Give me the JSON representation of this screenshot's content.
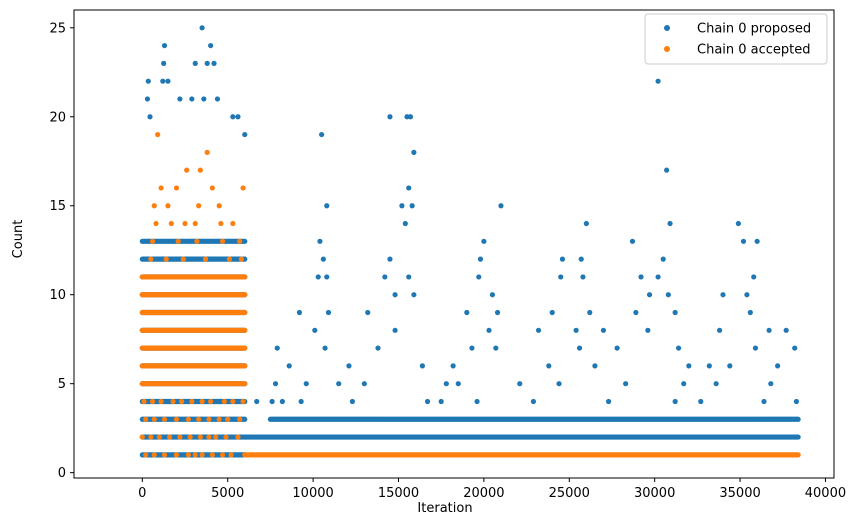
{
  "chart_data": {
    "type": "scatter",
    "title": "",
    "xlabel": "Iteration",
    "ylabel": "Count",
    "xlim": [
      -4000,
      40500
    ],
    "ylim": [
      -0.3,
      26
    ],
    "x_ticks": [
      0,
      5000,
      10000,
      15000,
      20000,
      25000,
      30000,
      35000,
      40000
    ],
    "y_ticks": [
      0,
      5,
      10,
      15,
      20,
      25
    ],
    "grid": false,
    "legend_placement": "top-right",
    "series": [
      {
        "name": "Chain 0 proposed",
        "color": "#1f77b4",
        "bands": [
          {
            "x_start": 0,
            "x_end": 6000,
            "y_min": 1,
            "y_max": 13,
            "density": "dense"
          },
          {
            "x_start": 6000,
            "x_end": 38400,
            "y_min": 2,
            "y_max": 2,
            "density": "dense"
          },
          {
            "x_start": 7500,
            "x_end": 38400,
            "y_min": 3,
            "y_max": 3,
            "density": "dense"
          }
        ],
        "points": [
          [
            3500,
            25
          ],
          [
            1300,
            24
          ],
          [
            4000,
            24
          ],
          [
            1250,
            23
          ],
          [
            3100,
            23
          ],
          [
            3800,
            23
          ],
          [
            4200,
            23
          ],
          [
            1200,
            22
          ],
          [
            1500,
            22
          ],
          [
            350,
            22
          ],
          [
            30200,
            22
          ],
          [
            2200,
            21
          ],
          [
            2900,
            21
          ],
          [
            300,
            21
          ],
          [
            3600,
            21
          ],
          [
            4400,
            21
          ],
          [
            450,
            20
          ],
          [
            5300,
            20
          ],
          [
            5600,
            20
          ],
          [
            14500,
            20
          ],
          [
            15500,
            20
          ],
          [
            15700,
            20
          ],
          [
            10500,
            19
          ],
          [
            6000,
            19
          ],
          [
            15900,
            18
          ],
          [
            30700,
            17
          ],
          [
            15600,
            16
          ],
          [
            10800,
            15
          ],
          [
            15200,
            15
          ],
          [
            15800,
            15
          ],
          [
            21000,
            15
          ],
          [
            26000,
            14
          ],
          [
            30900,
            14
          ],
          [
            34900,
            14
          ],
          [
            15400,
            14
          ],
          [
            10400,
            13
          ],
          [
            20000,
            13
          ],
          [
            28700,
            13
          ],
          [
            35200,
            13
          ],
          [
            36000,
            13
          ],
          [
            14500,
            12
          ],
          [
            19800,
            12
          ],
          [
            24600,
            12
          ],
          [
            25700,
            12
          ],
          [
            30500,
            12
          ],
          [
            10600,
            12
          ],
          [
            10300,
            11
          ],
          [
            10800,
            11
          ],
          [
            14200,
            11
          ],
          [
            15600,
            11
          ],
          [
            19700,
            11
          ],
          [
            24500,
            11
          ],
          [
            25800,
            11
          ],
          [
            29200,
            11
          ],
          [
            30200,
            11
          ],
          [
            35800,
            11
          ],
          [
            34000,
            10
          ],
          [
            35400,
            10
          ],
          [
            14800,
            10
          ],
          [
            15900,
            10
          ],
          [
            20500,
            10
          ],
          [
            29700,
            10
          ],
          [
            30800,
            10
          ],
          [
            9200,
            9
          ],
          [
            10900,
            9
          ],
          [
            13200,
            9
          ],
          [
            19000,
            9
          ],
          [
            20800,
            9
          ],
          [
            24000,
            9
          ],
          [
            26200,
            9
          ],
          [
            28900,
            9
          ],
          [
            31200,
            9
          ],
          [
            35600,
            9
          ],
          [
            10100,
            8
          ],
          [
            14800,
            8
          ],
          [
            20300,
            8
          ],
          [
            23200,
            8
          ],
          [
            25400,
            8
          ],
          [
            27000,
            8
          ],
          [
            29600,
            8
          ],
          [
            33800,
            8
          ],
          [
            36700,
            8
          ],
          [
            37700,
            8
          ],
          [
            7900,
            7
          ],
          [
            10700,
            7
          ],
          [
            13800,
            7
          ],
          [
            19300,
            7
          ],
          [
            20700,
            7
          ],
          [
            25600,
            7
          ],
          [
            27800,
            7
          ],
          [
            31400,
            7
          ],
          [
            35900,
            7
          ],
          [
            38200,
            7
          ],
          [
            8600,
            6
          ],
          [
            12100,
            6
          ],
          [
            16400,
            6
          ],
          [
            18200,
            6
          ],
          [
            23800,
            6
          ],
          [
            26500,
            6
          ],
          [
            32000,
            6
          ],
          [
            33200,
            6
          ],
          [
            34400,
            6
          ],
          [
            37200,
            6
          ],
          [
            7800,
            5
          ],
          [
            9600,
            5
          ],
          [
            11500,
            5
          ],
          [
            13000,
            5
          ],
          [
            17800,
            5
          ],
          [
            18500,
            5
          ],
          [
            22100,
            5
          ],
          [
            24400,
            5
          ],
          [
            28300,
            5
          ],
          [
            31700,
            5
          ],
          [
            33600,
            5
          ],
          [
            36800,
            5
          ],
          [
            6700,
            4
          ],
          [
            7600,
            4
          ],
          [
            8200,
            4
          ],
          [
            9300,
            4
          ],
          [
            12300,
            4
          ],
          [
            16700,
            4
          ],
          [
            17500,
            4
          ],
          [
            19600,
            4
          ],
          [
            22900,
            4
          ],
          [
            27300,
            4
          ],
          [
            31200,
            4
          ],
          [
            32700,
            4
          ],
          [
            36400,
            4
          ],
          [
            38300,
            4
          ]
        ]
      },
      {
        "name": "Chain 0 accepted",
        "color": "#ff7f0e",
        "bands": [
          {
            "x_start": 0,
            "x_end": 6000,
            "y_min": 5,
            "y_max": 11,
            "density": "dense"
          },
          {
            "x_start": 6000,
            "x_end": 38400,
            "y_min": 1,
            "y_max": 1,
            "density": "dense"
          }
        ],
        "points": [
          [
            3800,
            18
          ],
          [
            900,
            19
          ],
          [
            2600,
            17
          ],
          [
            3400,
            17
          ],
          [
            1100,
            16
          ],
          [
            2000,
            16
          ],
          [
            4100,
            16
          ],
          [
            5900,
            16
          ],
          [
            700,
            15
          ],
          [
            1500,
            15
          ],
          [
            3300,
            15
          ],
          [
            4500,
            15
          ],
          [
            800,
            14
          ],
          [
            1700,
            14
          ],
          [
            2500,
            14
          ],
          [
            3100,
            14
          ],
          [
            4600,
            14
          ],
          [
            5300,
            14
          ],
          [
            600,
            13
          ],
          [
            2100,
            13
          ],
          [
            3200,
            13
          ],
          [
            4700,
            13
          ],
          [
            5700,
            13
          ],
          [
            500,
            12
          ],
          [
            1400,
            12
          ],
          [
            2400,
            12
          ],
          [
            3700,
            12
          ],
          [
            5100,
            12
          ],
          [
            5800,
            12
          ],
          [
            100,
            4
          ],
          [
            600,
            4
          ],
          [
            1100,
            4
          ],
          [
            1800,
            4
          ],
          [
            2300,
            4
          ],
          [
            2900,
            4
          ],
          [
            3500,
            4
          ],
          [
            4000,
            4
          ],
          [
            4800,
            4
          ],
          [
            5300,
            4
          ],
          [
            5900,
            4
          ],
          [
            200,
            3
          ],
          [
            700,
            3
          ],
          [
            1300,
            3
          ],
          [
            2000,
            3
          ],
          [
            2700,
            3
          ],
          [
            3300,
            3
          ],
          [
            3900,
            3
          ],
          [
            4500,
            3
          ],
          [
            5000,
            3
          ],
          [
            5700,
            3
          ],
          [
            0,
            2
          ],
          [
            500,
            2
          ],
          [
            1000,
            2
          ],
          [
            1600,
            2
          ],
          [
            2200,
            2
          ],
          [
            2800,
            2
          ],
          [
            3400,
            2
          ],
          [
            3900,
            2
          ],
          [
            4300,
            2
          ],
          [
            4900,
            2
          ],
          [
            5600,
            2
          ],
          [
            200,
            1
          ],
          [
            700,
            1
          ],
          [
            1300,
            1
          ],
          [
            2000,
            1
          ],
          [
            2700,
            1
          ],
          [
            3100,
            1
          ],
          [
            3500,
            1
          ],
          [
            4100,
            1
          ],
          [
            4700,
            1
          ],
          [
            5200,
            1
          ]
        ]
      }
    ]
  }
}
